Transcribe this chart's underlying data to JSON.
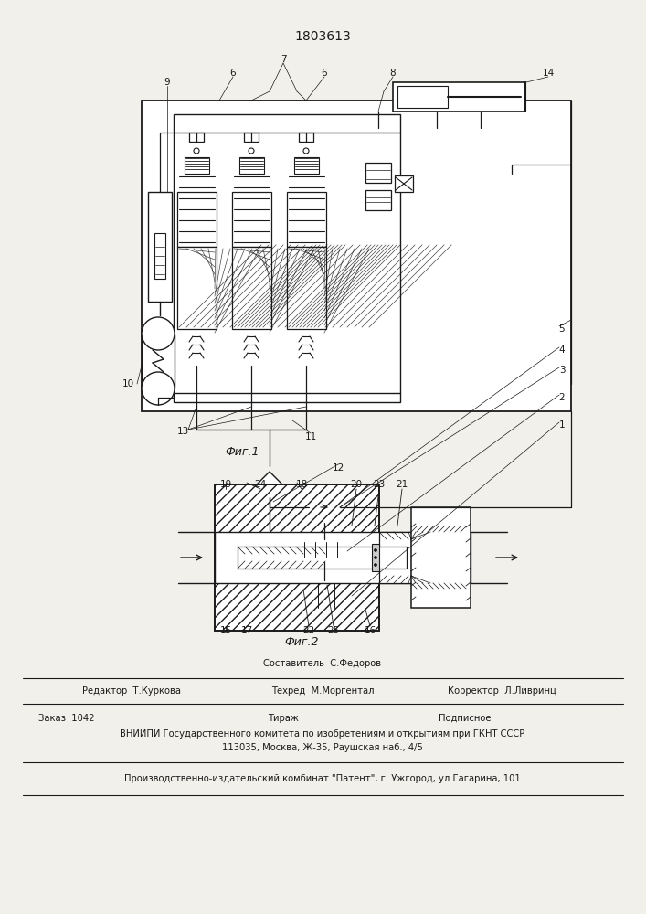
{
  "patent_number": "1803613",
  "bg_color": "#f2f0eb",
  "line_color": "#1a1a1a",
  "fig1_label": "Фиг.1",
  "fig2_label": "Фиг.2",
  "footer": {
    "editor": "Редактор  Т.Куркова",
    "composer_line1": "Составитель  С.Федоров",
    "composer_line2": "Техред  М.Моргентал",
    "corrector": "Корректор  Л.Ливринц",
    "order_line": "Заказ  1042",
    "tirazh_line": "Тираж",
    "podpisnoe_line": "Подписное",
    "vniip_line": "ВНИИПИ Государственного комитета по изобретениям и открытиям при ГКНТ СССР",
    "address_line": "113035, Москва, Ж-35, Раушская наб., 4/5",
    "factory_line": "Производственно-издательский комбинат \"Патент\", г. Ужгород, ул.Гагарина, 101"
  }
}
